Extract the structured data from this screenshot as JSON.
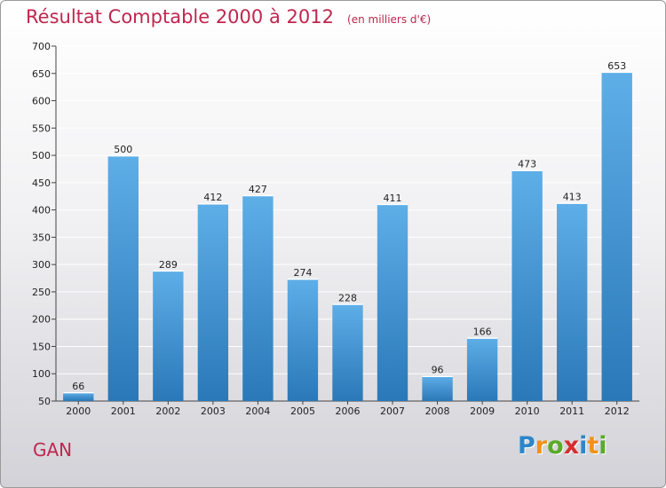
{
  "title": "Résultat Comptable 2000 à 2012",
  "subtitle": "(en milliers d'€)",
  "commune": "GAN",
  "logo": {
    "letters": [
      "P",
      "r",
      "o",
      "x",
      "i",
      "t",
      "i"
    ],
    "colors": [
      "#2e86c7",
      "#f0921a",
      "#5aaa2a",
      "#d62e2e",
      "#2e86c7",
      "#f0921a",
      "#5aaa2a"
    ]
  },
  "colors": {
    "bar": "#3d95d6",
    "bar_light": "#5eaee8",
    "bar_dark": "#2a78b8",
    "grid": "#ffffff"
  },
  "chart_data": {
    "type": "bar",
    "title": "Résultat Comptable 2000 à 2012",
    "subtitle": "(en milliers d'€)",
    "xlabel": "",
    "ylabel": "",
    "categories": [
      "2000",
      "2001",
      "2002",
      "2003",
      "2004",
      "2005",
      "2006",
      "2007",
      "2008",
      "2009",
      "2010",
      "2011",
      "2012"
    ],
    "values": [
      66,
      500,
      289,
      412,
      427,
      274,
      228,
      411,
      96,
      166,
      473,
      413,
      653
    ],
    "ylim": [
      50,
      700
    ],
    "yticks": [
      50,
      100,
      150,
      200,
      250,
      300,
      350,
      400,
      450,
      500,
      550,
      600,
      650,
      700
    ],
    "grid": true,
    "legend": "none"
  }
}
